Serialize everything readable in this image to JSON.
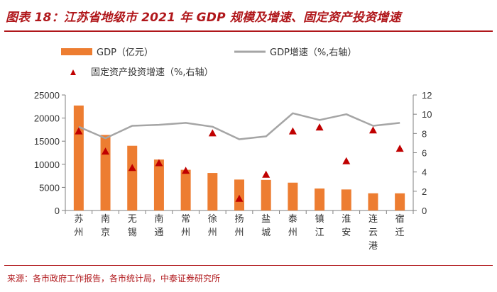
{
  "figure": {
    "title": "图表 18：江苏省地级市 2021 年 GDP 规模及增速、固定资产投资增速",
    "source": "来源：各市政府工作报告，各市统计局，中泰证券研究所"
  },
  "chart_data": {
    "type": "bar",
    "categories": [
      "苏州",
      "南京",
      "无锡",
      "南通",
      "常州",
      "徐州",
      "扬州",
      "盐城",
      "泰州",
      "镇江",
      "淮安",
      "连云港",
      "宿迁"
    ],
    "series": [
      {
        "name": "GDP（亿元）",
        "kind": "bar",
        "axis": "left",
        "color": "#ed7d31",
        "values": [
          22718,
          16355,
          14003,
          11027,
          8807,
          8117,
          6696,
          6617,
          6025,
          4763,
          4550,
          3727,
          3719
        ]
      },
      {
        "name": "GDP增速（%,右轴）",
        "kind": "line",
        "axis": "right",
        "color": "#a5a5a5",
        "values": [
          8.7,
          7.5,
          8.8,
          8.9,
          9.1,
          8.7,
          7.4,
          7.7,
          10.1,
          9.4,
          10.0,
          8.8,
          9.1
        ]
      },
      {
        "name": "固定资产投资增速（%,右轴）",
        "kind": "marker",
        "axis": "right",
        "color": "#c00000",
        "values": [
          8.2,
          6.1,
          4.4,
          4.9,
          4.1,
          8.0,
          1.2,
          3.7,
          8.2,
          8.6,
          5.1,
          8.3,
          6.4
        ]
      }
    ],
    "y_left": {
      "min": 0,
      "max": 25000,
      "ticks": [
        0,
        5000,
        10000,
        15000,
        20000,
        25000
      ]
    },
    "y_right": {
      "min": 0,
      "max": 12,
      "ticks": [
        0,
        2,
        4,
        6,
        8,
        10,
        12
      ]
    },
    "legend_position": "top-left",
    "grid": false
  }
}
